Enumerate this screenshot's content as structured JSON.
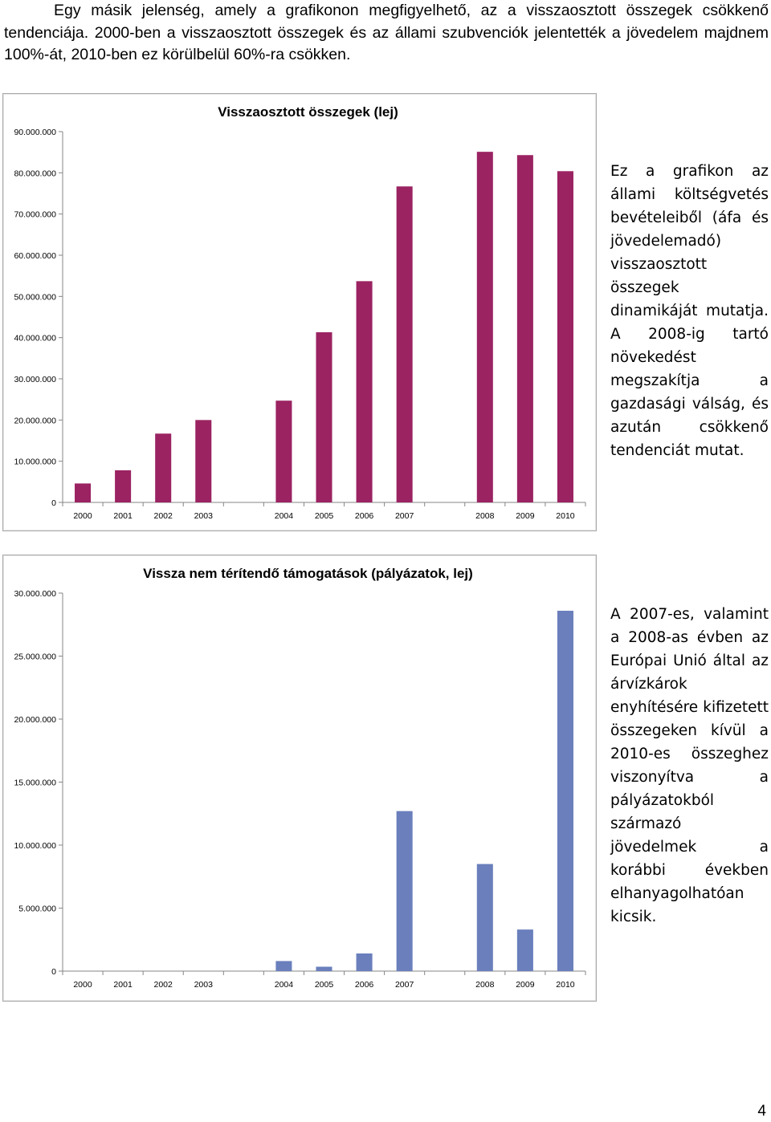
{
  "intro": {
    "paragraph": "Egy másik jelenség, amely a grafikonon megfigyelhető, az a visszaosztott összegek csökkenő tendenciája. 2000-ben a visszaosztott összegek és az állami szubvenciók jelentették a jövedelem majdnem 100%-át, 2010-ben ez körülbelül 60%-ra csökken."
  },
  "chart1_caption": "Ez a grafikon az állami költségvetés bevételeiből (áfa és jövedelemadó) visszaosztott összegek dinamikáját mutatja. A 2008-ig tartó növekedést megszakítja a gazdasági válság, és azután csökkenő tendenciát mutat.",
  "chart2_caption": "A 2007-es, valamint a 2008-as évben az Európai Unió által az árvízkárok enyhítésére kifizetett összegeken kívül a 2010-es összeghez viszonyítva a pályázatokból származó jövedelmek a korábbi években elhanyagolhatóan kicsik.",
  "page_number": "4",
  "chart_data": [
    {
      "type": "bar",
      "title": "Visszaosztott összegek (lej)",
      "categories": [
        "2000",
        "2001",
        "2002",
        "2003",
        "2004",
        "2005",
        "2006",
        "2007",
        "2008",
        "2009",
        "2010"
      ],
      "positions": [
        0,
        1,
        2,
        3,
        5,
        6,
        7,
        8,
        10,
        11,
        12
      ],
      "values": [
        4600000,
        7800000,
        16700000,
        20000000,
        24700000,
        41300000,
        53700000,
        76700000,
        85100000,
        84300000,
        80400000
      ],
      "ylim": [
        0,
        90000000
      ],
      "yticks": [
        "0",
        "10.000.000",
        "20.000.000",
        "30.000.000",
        "40.000.000",
        "50.000.000",
        "60.000.000",
        "70.000.000",
        "80.000.000",
        "90.000.000"
      ],
      "color": "#9b2362",
      "grid": false,
      "legend": "none"
    },
    {
      "type": "bar",
      "title": "Vissza nem térítendő támogatások (pályázatok, lej)",
      "categories": [
        "2000",
        "2001",
        "2002",
        "2003",
        "2004",
        "2005",
        "2006",
        "2007",
        "2008",
        "2009",
        "2010"
      ],
      "positions": [
        0,
        1,
        2,
        3,
        5,
        6,
        7,
        8,
        10,
        11,
        12
      ],
      "values": [
        0,
        0,
        0,
        0,
        800000,
        350000,
        1400000,
        12700000,
        8500000,
        3300000,
        28600000
      ],
      "ylim": [
        0,
        30000000
      ],
      "yticks": [
        "0",
        "5.000.000",
        "10.000.000",
        "15.000.000",
        "20.000.000",
        "25.000.000",
        "30.000.000"
      ],
      "color": "#6a7fbc",
      "grid": false,
      "legend": "none"
    }
  ]
}
